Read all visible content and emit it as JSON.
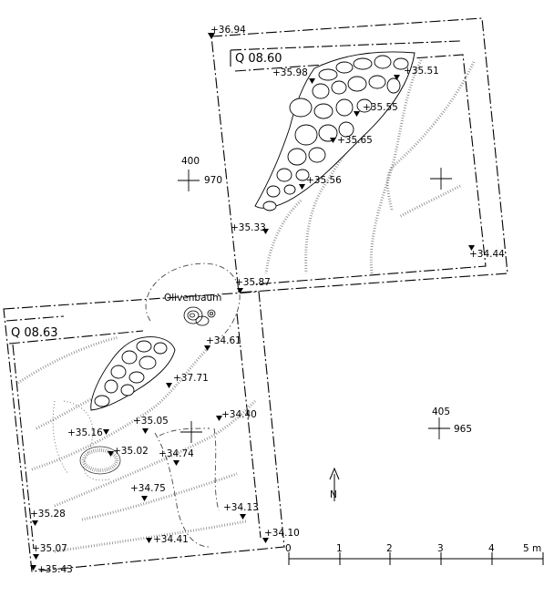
{
  "quadrants": {
    "upper": "Q 08.60",
    "lower": "Q 08.63"
  },
  "feature_label": "Olivenbaum",
  "grid_crosses": [
    {
      "top": "400",
      "side": "970"
    },
    {
      "top": "405",
      "side": "965"
    }
  ],
  "elevations_upper": [
    "+36.94",
    "+35.98",
    "+35.51",
    "+35.55",
    "+35.65",
    "+35.56",
    "+35.33",
    "+34.44",
    "+35.87"
  ],
  "elevations_lower": [
    "+34.61",
    "+37.71",
    "+35.16",
    "+35.05",
    "+34.40",
    "+35.02",
    "+34.74",
    "+34.75",
    "+35.28",
    "+34.13",
    "+34.10",
    "+35.07",
    "+34.41",
    "+35.43"
  ],
  "north_label": "N",
  "scale": {
    "ticks": [
      "0",
      "1",
      "2",
      "3",
      "4"
    ],
    "last": "5 m"
  }
}
